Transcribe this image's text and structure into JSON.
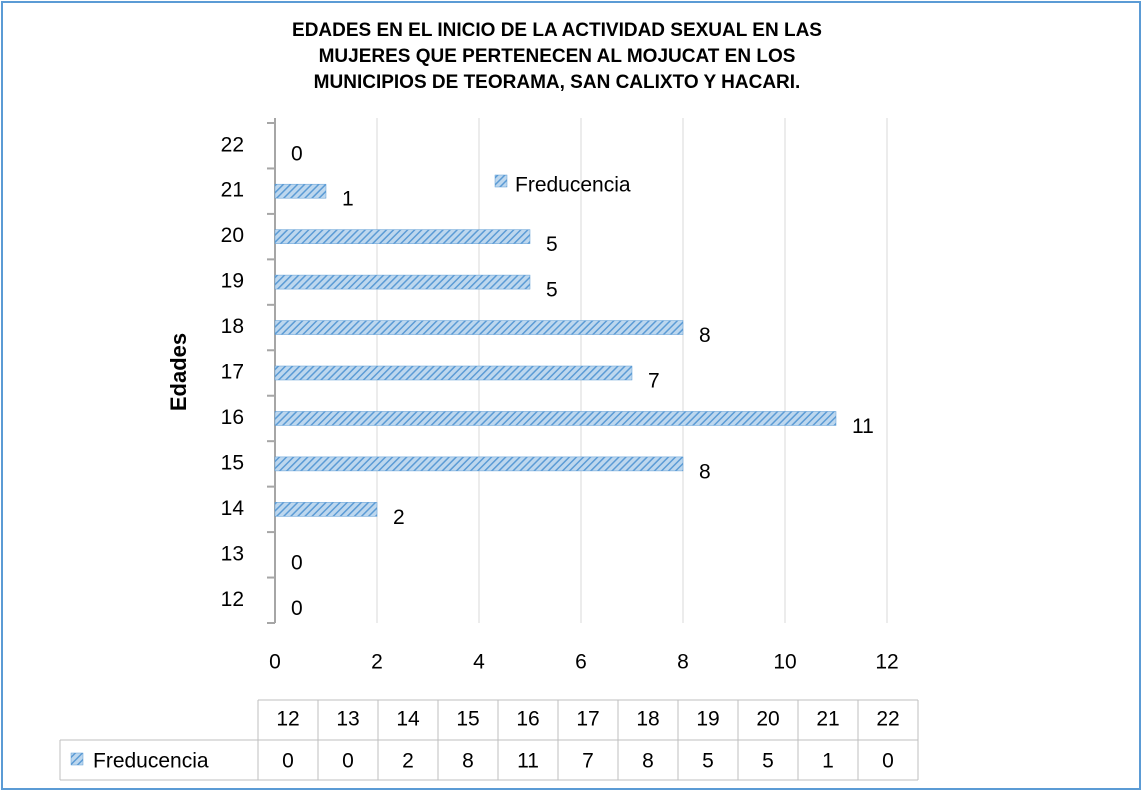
{
  "chart_data": {
    "type": "bar",
    "orientation": "horizontal",
    "title": "EDADES EN EL INICIO DE LA ACTIVIDAD SEXUAL EN LAS\nMUJERES QUE PERTENECEN AL MOJUCAT EN LOS\nMUNICIPIOS DE TEORAMA, SAN CALIXTO Y HACARI.",
    "y_label": "Edades",
    "categories": [
      "12",
      "13",
      "14",
      "15",
      "16",
      "17",
      "18",
      "19",
      "20",
      "21",
      "22"
    ],
    "series": [
      {
        "name": "Freducencia",
        "color": "#5b9bd5",
        "values": [
          0,
          0,
          2,
          8,
          11,
          7,
          8,
          5,
          5,
          1,
          0
        ]
      }
    ],
    "xlim": [
      0,
      12
    ],
    "xticks": [
      0,
      2,
      4,
      6,
      8,
      10,
      12
    ],
    "grid": true,
    "legend": "top-right",
    "data_labels": true,
    "data_table": true
  }
}
